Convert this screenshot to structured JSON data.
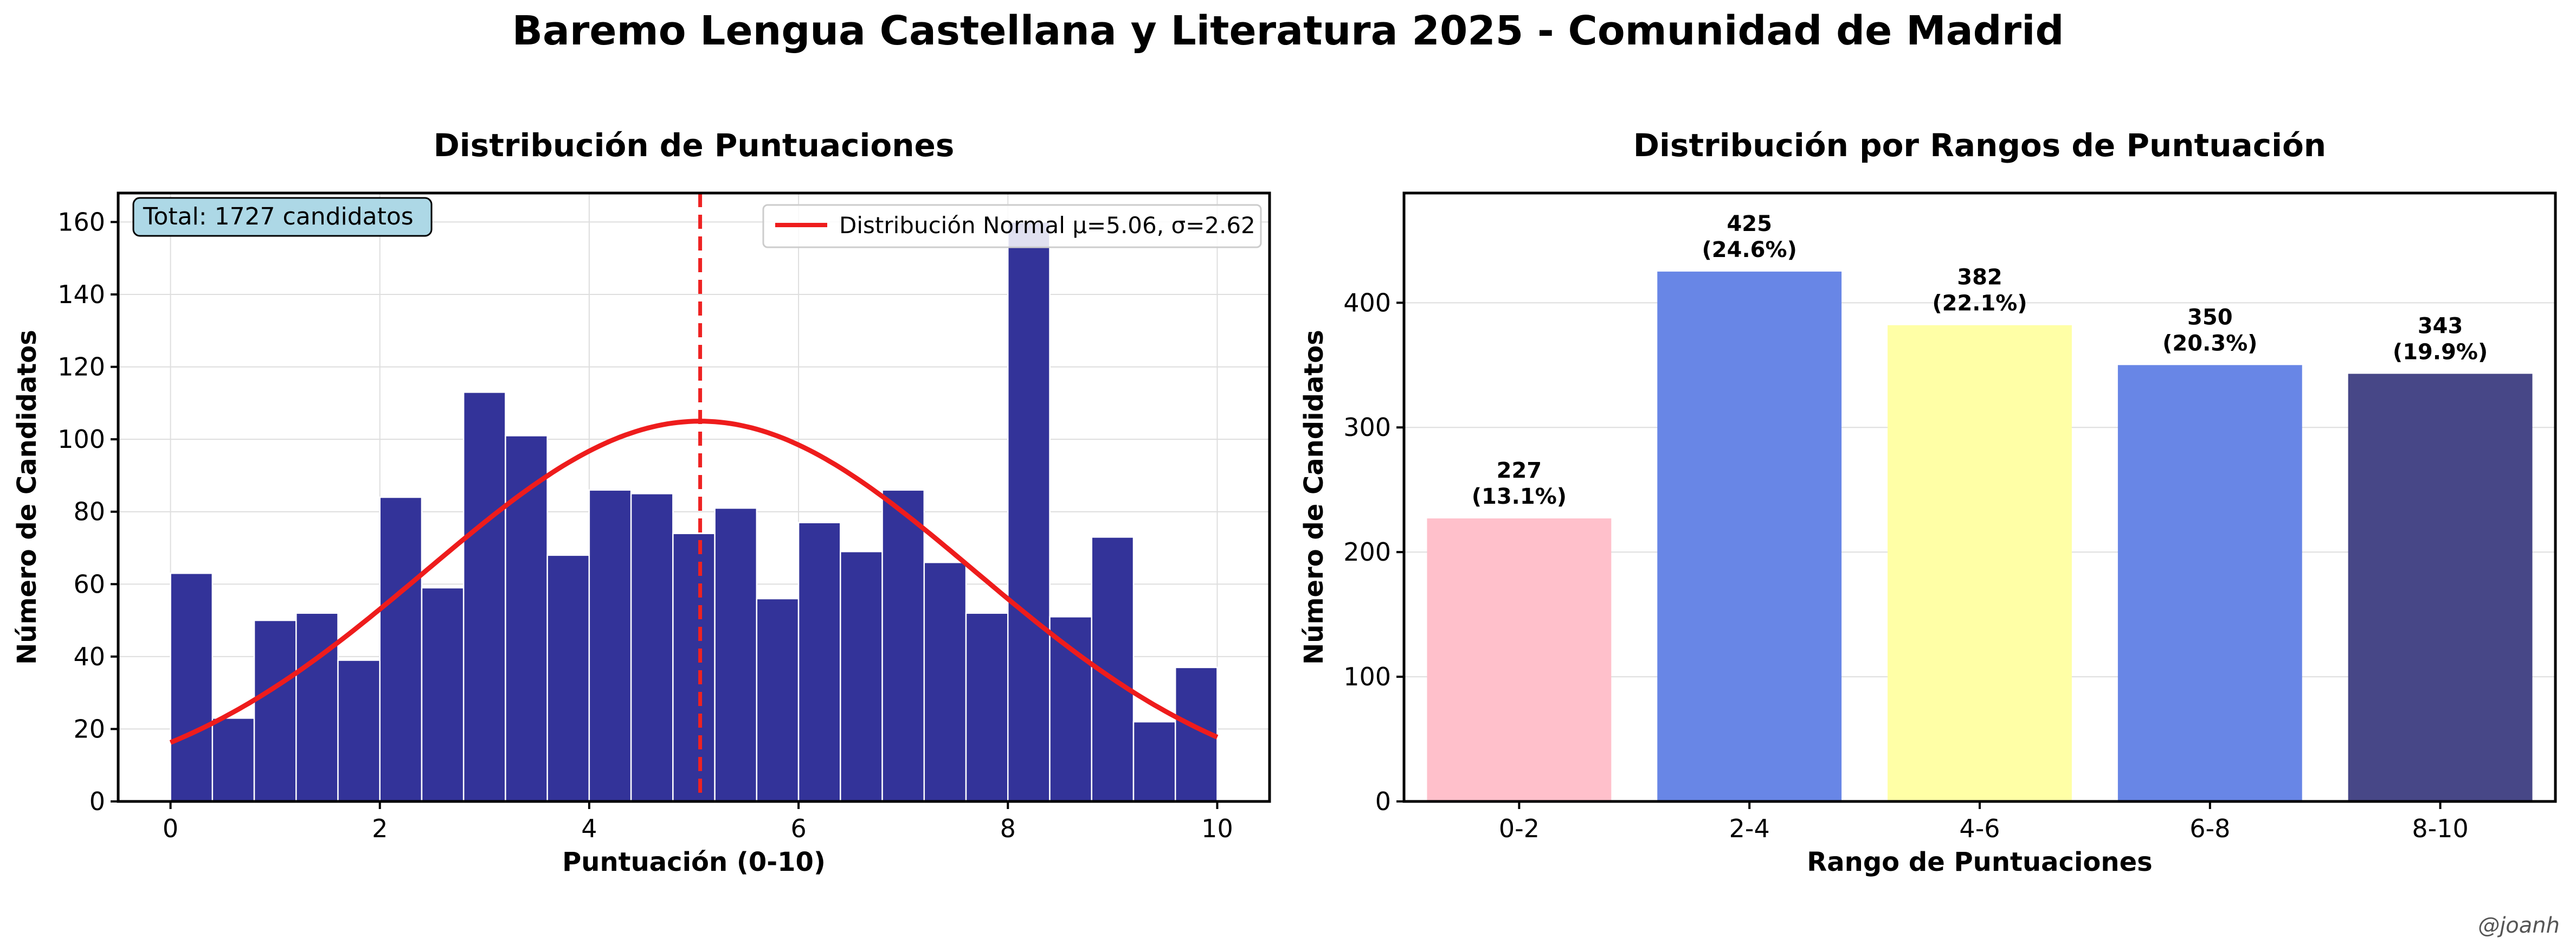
{
  "figure": {
    "suptitle": "Baremo Lengua Castellana y Literatura 2025 - Comunidad de Madrid",
    "watermark": "@joanh"
  },
  "chart_data": [
    {
      "type": "bar",
      "subtype": "histogram",
      "title": "Distribución de Puntuaciones",
      "xlabel": "Puntuación (0-10)",
      "ylabel": "Número de Candidatos",
      "xlim": [
        -0.5,
        10.5
      ],
      "ylim": [
        0,
        168
      ],
      "xticks": [
        0,
        2,
        4,
        6,
        8,
        10
      ],
      "yticks": [
        0,
        20,
        40,
        60,
        80,
        100,
        120,
        140,
        160
      ],
      "grid": true,
      "bar_color": "#333399",
      "bins": {
        "start": 0,
        "width": 0.4,
        "counts": [
          63,
          23,
          50,
          52,
          39,
          84,
          59,
          113,
          101,
          68,
          86,
          85,
          74,
          81,
          56,
          77,
          69,
          86,
          66,
          52,
          160,
          51,
          73,
          22,
          37
        ]
      },
      "mean_line": {
        "x": 5.06,
        "color": "#ee2222",
        "style": "dashed"
      },
      "normal_curve": {
        "mu": 5.06,
        "sigma": 2.62,
        "peak": 105,
        "color": "#ee1c1c",
        "legend_label": "Distribución Normal μ=5.06, σ=2.62"
      },
      "legend_position": "top-right",
      "annotation": {
        "text": "Total: 1727 candidatos",
        "position": "top-left",
        "background": "#add8e6"
      }
    },
    {
      "type": "bar",
      "title": "Distribución por Rangos de Puntuación",
      "xlabel": "Rango de Puntuaciones",
      "ylabel": "Número de Candidatos",
      "ylim": [
        0,
        488
      ],
      "yticks": [
        0,
        100,
        200,
        300,
        400
      ],
      "grid": true,
      "categories": [
        "0-2",
        "2-4",
        "4-6",
        "6-8",
        "8-10"
      ],
      "values": [
        227,
        425,
        382,
        350,
        343
      ],
      "percent_labels": [
        "(13.1%)",
        "(24.6%)",
        "(22.1%)",
        "(20.3%)",
        "(19.9%)"
      ],
      "colors": [
        "#ffc0cb",
        "#6886e6",
        "#ffffa6",
        "#6886e6",
        "#474787"
      ]
    }
  ]
}
